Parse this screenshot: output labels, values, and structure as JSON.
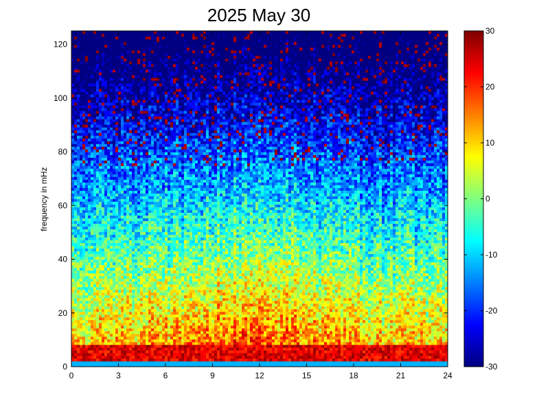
{
  "chart_data": {
    "type": "heatmap",
    "title": "2025 May 30",
    "xlabel": "",
    "ylabel": "frequency in mHz",
    "xlim": [
      0,
      24
    ],
    "ylim": [
      0,
      125
    ],
    "x_ticks": [
      "0",
      "3",
      "6",
      "9",
      "12",
      "15",
      "18",
      "21",
      "24"
    ],
    "y_ticks": [
      "0",
      "20",
      "40",
      "60",
      "80",
      "100",
      "120"
    ],
    "colorbar": {
      "colormap": "jet",
      "clim": [
        -30,
        30
      ],
      "ticks": [
        "30",
        "20",
        "10",
        "0",
        "-10",
        "-20",
        "-30"
      ]
    },
    "description": "Spectrogram of power vs time (0-24) and frequency (0-125 mHz); strongest values (~25-30) in a band near 3-6 mHz, yellow/orange (5-15) below ~50 mHz especially around x=7-15, fading to blue (-20 to -30) above ~80 mHz with scattered dark-red speckles."
  }
}
